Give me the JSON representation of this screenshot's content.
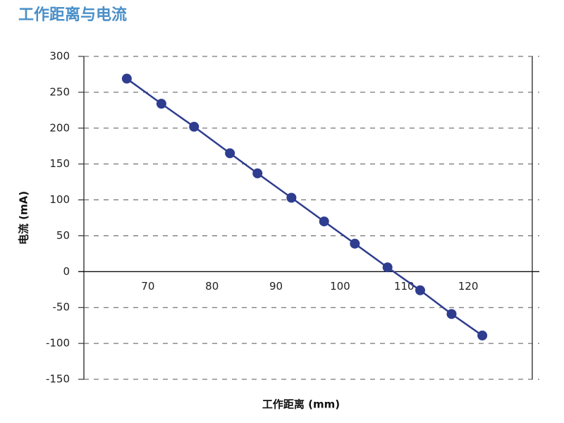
{
  "chart_data": {
    "type": "line",
    "title": "工作距离与电流",
    "x_label": "工作距离 (mm)",
    "y_label": "电流 (mA)",
    "x": [
      66.7,
      72.1,
      77.2,
      82.8,
      87.1,
      92.4,
      97.5,
      102.3,
      107.4,
      112.5,
      117.4,
      122.2
    ],
    "values": [
      269,
      234,
      202,
      165,
      137,
      103,
      70,
      39,
      6,
      -26,
      -59,
      -89
    ],
    "color": "#2e3d8f",
    "xlim": [
      60,
      130
    ],
    "xticks": [
      70,
      80,
      90,
      100,
      110,
      120
    ],
    "ylim": [
      -150,
      300
    ],
    "yticks": [
      -150,
      -100,
      -50,
      0,
      50,
      100,
      150,
      200,
      250,
      300
    ],
    "grid": true
  }
}
